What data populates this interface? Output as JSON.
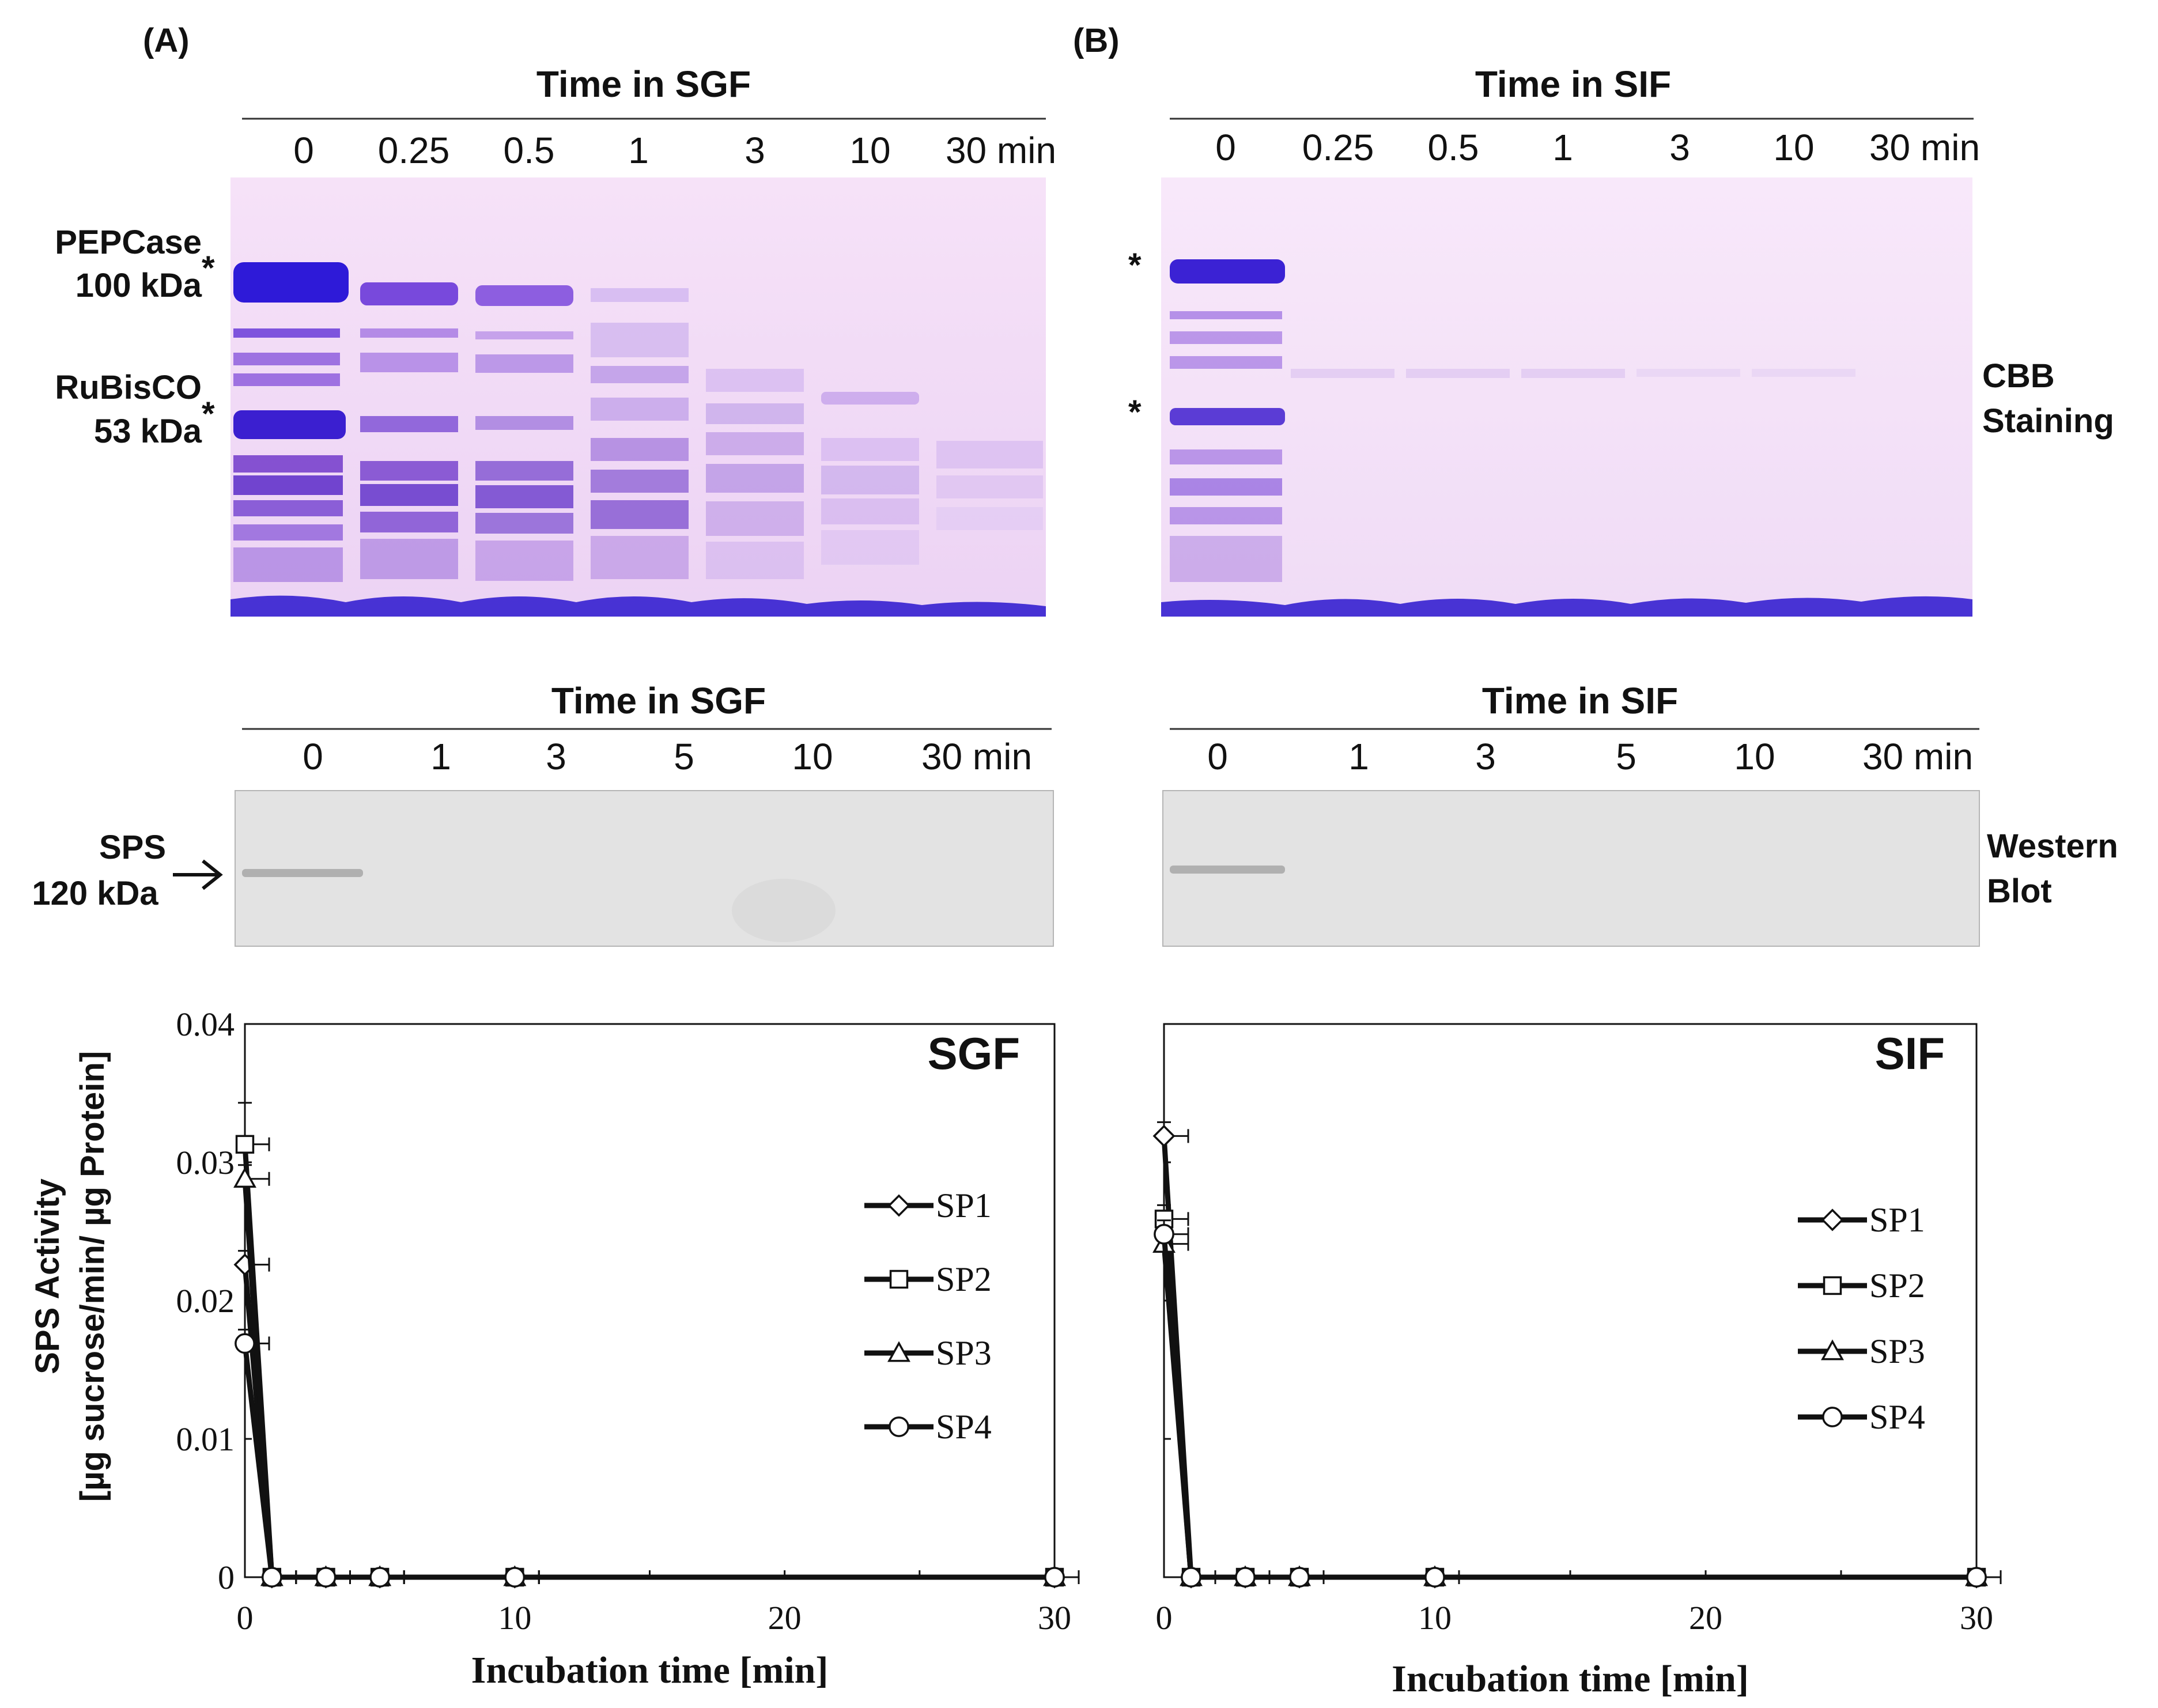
{
  "colors": {
    "gel_bg": "#f6e2f8",
    "band_dark": "#3b1fd0",
    "band_mid": "#7a3fd8",
    "band_light": "#c9a3ea",
    "blot_bg": "#e3e3e3",
    "blot_band": "#b9b9b9"
  },
  "panelA": {
    "label": "(A)",
    "gel_header": "Time in SGF",
    "gel_lanes": [
      "0",
      "0.25",
      "0.5",
      "1",
      "3",
      "10",
      "30 min"
    ],
    "pepcase_name": "PEPCase",
    "pepcase_size": "100 kDa",
    "rubisco_name": "RuBisCO",
    "rubisco_size": "53 kDa",
    "marker": "*",
    "blot_header": "Time in SGF",
    "blot_lanes": [
      "0",
      "1",
      "3",
      "5",
      "10",
      "30 min"
    ],
    "sps_name": "SPS",
    "sps_size": "120 kDa"
  },
  "panelB": {
    "label": "(B)",
    "gel_header": "Time in SIF",
    "gel_lanes": [
      "0",
      "0.25",
      "0.5",
      "1",
      "3",
      "10",
      "30 min"
    ],
    "marker": "*",
    "cbb_line1": "CBB",
    "cbb_line2": "Staining",
    "blot_header": "Time in SIF",
    "blot_lanes": [
      "0",
      "1",
      "3",
      "5",
      "10",
      "30 min"
    ],
    "wb_line1": "Western",
    "wb_line2": "Blot"
  },
  "ylabel_line1": "SPS Activity",
  "ylabel_line2": "[µg sucrose/min/ µg Protein]",
  "chart_data": [
    {
      "type": "line",
      "title": "SGF",
      "xlabel": "Incubation time [min]",
      "ylabel": "SPS Activity [µg sucrose/min/ µg Protein]",
      "xlim": [
        0,
        30
      ],
      "ylim": [
        0,
        0.04
      ],
      "xticks": [
        "0",
        "10",
        "20",
        "30"
      ],
      "yticks": [
        "0",
        "0.01",
        "0.02",
        "0.03",
        "0.04"
      ],
      "x": [
        0,
        1,
        3,
        5,
        10,
        30
      ],
      "series": [
        {
          "name": "SP1",
          "marker": "diamond",
          "values": [
            0.0226,
            0,
            0,
            0,
            0,
            0
          ],
          "error": [
            0.001,
            0,
            0,
            0,
            0,
            0
          ]
        },
        {
          "name": "SP2",
          "marker": "square",
          "values": [
            0.0313,
            0,
            0,
            0,
            0,
            0
          ],
          "error": [
            0.003,
            0,
            0,
            0,
            0,
            0
          ]
        },
        {
          "name": "SP3",
          "marker": "triangle",
          "values": [
            0.0288,
            0,
            0,
            0,
            0,
            0
          ],
          "error": [
            0.001,
            0,
            0,
            0,
            0,
            0
          ]
        },
        {
          "name": "SP4",
          "marker": "circle",
          "values": [
            0.0169,
            0,
            0,
            0,
            0,
            0
          ],
          "error": [
            0.001,
            0,
            0,
            0,
            0,
            0
          ]
        }
      ]
    },
    {
      "type": "line",
      "title": "SIF",
      "xlabel": "Incubation time [min]",
      "ylabel": "",
      "xlim": [
        0,
        30
      ],
      "ylim": [
        0,
        0.04
      ],
      "xticks": [
        "0",
        "10",
        "20",
        "30"
      ],
      "yticks": [],
      "x": [
        0,
        1,
        3,
        5,
        10,
        30
      ],
      "series": [
        {
          "name": "SP1",
          "marker": "diamond",
          "values": [
            0.0319,
            0,
            0,
            0,
            0,
            0
          ],
          "error": [
            0.001,
            0,
            0,
            0,
            0,
            0
          ]
        },
        {
          "name": "SP2",
          "marker": "square",
          "values": [
            0.0259,
            0,
            0,
            0,
            0,
            0
          ],
          "error": [
            0.001,
            0,
            0,
            0,
            0,
            0
          ]
        },
        {
          "name": "SP3",
          "marker": "triangle",
          "values": [
            0.0241,
            0,
            0,
            0,
            0,
            0
          ],
          "error": [
            0.001,
            0,
            0,
            0,
            0,
            0
          ]
        },
        {
          "name": "SP4",
          "marker": "circle",
          "values": [
            0.0248,
            0,
            0,
            0,
            0,
            0
          ],
          "error": [
            0.001,
            0,
            0,
            0,
            0,
            0
          ]
        }
      ]
    }
  ]
}
